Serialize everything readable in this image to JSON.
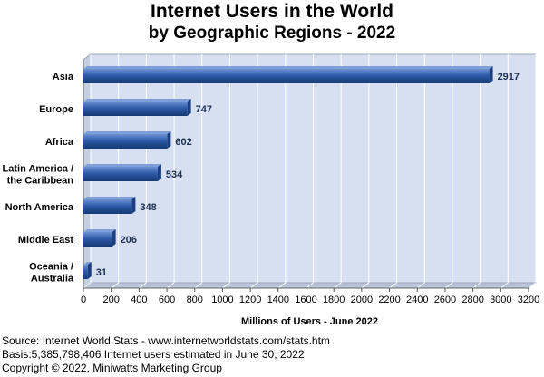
{
  "chart_data": {
    "type": "bar",
    "orientation": "horizontal",
    "title": "Internet Users in the World",
    "subtitle": "by Geographic Regions -  2022",
    "categories": [
      [
        "Asia"
      ],
      [
        "Europe"
      ],
      [
        "Africa"
      ],
      [
        "Latin America /",
        "the Caribbean"
      ],
      [
        "North America"
      ],
      [
        "Middle East"
      ],
      [
        "Oceania  /",
        "Australia"
      ]
    ],
    "values": [
      2917,
      747,
      602,
      534,
      348,
      206,
      31
    ],
    "xlabel": "Millions of Users - June 2022",
    "ylabel": "",
    "xlim": [
      0,
      3200
    ],
    "xticks": [
      0,
      200,
      400,
      600,
      800,
      1000,
      1200,
      1400,
      1600,
      1800,
      2000,
      2200,
      2400,
      2600,
      2800,
      3000,
      3200
    ],
    "grid": true,
    "colors": {
      "bar": "#2e5aa8",
      "plot_background": "#d6e0f0",
      "grid": "#ffffff",
      "value_label": "#1f2f55"
    }
  },
  "footer": {
    "source": "Source: Internet World Stats - www.internetworldstats.com/stats.htm",
    "basis": "Basis:5,385,798,406 Internet users estimated in June 30, 2022",
    "copyright": "Copyright © 2022, Miniwatts Marketing Group"
  }
}
